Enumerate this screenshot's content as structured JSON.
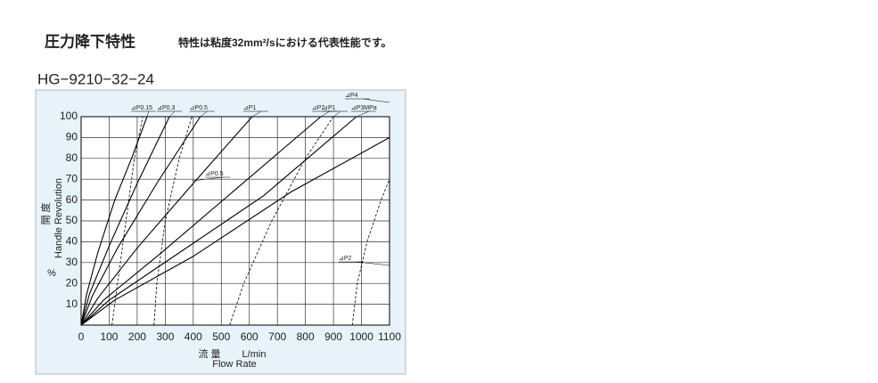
{
  "header": {
    "title": "圧力降下特性",
    "note": "特性は粘度32mm²/sにおける代表性能です。"
  },
  "chart_data": {
    "type": "line",
    "title": "HG−9210−32−24",
    "y_label_jp": "開 度",
    "y_label": "Handle Revolution",
    "y_unit": "%",
    "x_label_jp": "流 量",
    "x_unit": "L/min",
    "x_label": "Flow Rate",
    "xlim": [
      0,
      1100
    ],
    "xticks": [
      0,
      100,
      200,
      300,
      400,
      500,
      600,
      700,
      800,
      900,
      1000,
      1100
    ],
    "ylim": [
      0,
      100
    ],
    "yticks": [
      10,
      20,
      30,
      40,
      50,
      60,
      70,
      80,
      90,
      100
    ],
    "grid": true,
    "series": [
      {
        "name": "⊿P0.15",
        "color": "#000000",
        "style": "solid",
        "x": [
          0,
          20,
          60,
          120,
          180,
          235
        ],
        "values": [
          0,
          15,
          35,
          60,
          80,
          100
        ]
      },
      {
        "name": "⊿P0.3",
        "color": "#000000",
        "style": "solid",
        "x": [
          0,
          30,
          100,
          200,
          315
        ],
        "values": [
          0,
          15,
          38,
          68,
          100
        ]
      },
      {
        "name": "⊿P0.5",
        "color": "#000000",
        "style": "solid",
        "x": [
          0,
          40,
          130,
          270,
          425
        ],
        "values": [
          0,
          14,
          37,
          68,
          100
        ]
      },
      {
        "name": "⊿P1",
        "color": "#000000",
        "style": "solid",
        "x": [
          0,
          60,
          200,
          400,
          610
        ],
        "values": [
          0,
          13,
          37,
          68,
          100
        ]
      },
      {
        "name": "⊿P2",
        "color": "#000000",
        "style": "solid",
        "x": [
          0,
          80,
          280,
          550,
          855
        ],
        "values": [
          0,
          12,
          34,
          65,
          100
        ]
      },
      {
        "name": "⊿P3MPa",
        "color": "#000000",
        "style": "solid",
        "x": [
          0,
          100,
          320,
          650,
          982
        ],
        "values": [
          0,
          12,
          32,
          62,
          100
        ]
      },
      {
        "name": "⊿P4",
        "color": "#000000",
        "style": "solid",
        "x": [
          0,
          120,
          400,
          750,
          1100
        ],
        "values": [
          0,
          12,
          33,
          64,
          90
        ]
      },
      {
        "color": "#000000",
        "style": "dashed",
        "x": [
          110,
          130,
          160,
          190,
          220
        ],
        "values": [
          0,
          20,
          50,
          80,
          100
        ]
      },
      {
        "name": "⊿P0.5",
        "color": "#000000",
        "style": "dashed",
        "x": [
          260,
          270,
          300,
          350,
          395
        ],
        "values": [
          0,
          20,
          50,
          80,
          100
        ]
      },
      {
        "name": "⊿P1",
        "color": "#000000",
        "style": "dashed",
        "x": [
          530,
          580,
          680,
          800,
          900
        ],
        "values": [
          0,
          20,
          50,
          80,
          100
        ]
      },
      {
        "name": "⊿P2",
        "color": "#000000",
        "style": "dashed",
        "x": [
          967,
          985,
          1020,
          1070,
          1100
        ],
        "values": [
          0,
          20,
          40,
          60,
          70
        ]
      }
    ]
  }
}
